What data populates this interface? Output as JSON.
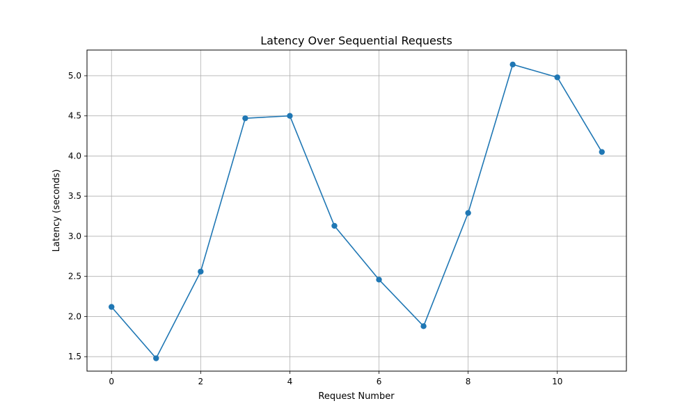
{
  "chart_data": {
    "type": "line",
    "title": "Latency Over Sequential Requests",
    "xlabel": "Request Number",
    "ylabel": "Latency (seconds)",
    "x": [
      0,
      1,
      2,
      3,
      4,
      5,
      6,
      7,
      8,
      9,
      10,
      11
    ],
    "series": [
      {
        "values": [
          2.12,
          1.48,
          2.56,
          4.47,
          4.5,
          3.13,
          2.46,
          1.88,
          3.29,
          5.14,
          4.98,
          4.05
        ],
        "color": "#1f77b4",
        "marker": "circle"
      }
    ],
    "xlim": [
      -0.55,
      11.55
    ],
    "ylim": [
      1.32,
      5.32
    ],
    "xticks": [
      0,
      2,
      4,
      6,
      8,
      10
    ],
    "yticks": [
      1.5,
      2.0,
      2.5,
      3.0,
      3.5,
      4.0,
      4.5,
      5.0
    ],
    "grid": true,
    "legend": "none"
  }
}
